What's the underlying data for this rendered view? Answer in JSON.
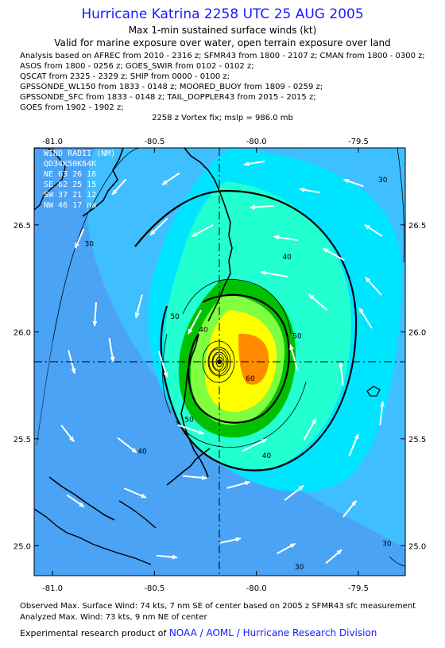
{
  "title": "Hurricane Katrina 2258 UTC 25 AUG 2005",
  "subtitle1": "Max 1-min sustained surface winds (kt)",
  "subtitle2": "Valid for marine exposure over water, open terrain exposure over land",
  "analysis_lines": [
    "Analysis based on  AFREC from 2010 - 2316 z;  SFMR43 from 1800 - 2107 z;  CMAN from 1800 - 0300 z;",
    "ASOS from 1800 - 0256 z;  GOES_SWIR from 0102 - 0102 z;",
    "QSCAT from 2325 - 2329 z;  SHIP from 0000 - 0100 z;",
    "GPSSONDE_WL150 from 1833 - 0148 z;  MOORED_BUOY from 1809 - 0259 z;",
    "GPSSONDE_SFC from 1833 - 0148 z;  TAIL_DOPPLER43 from 2015 - 2015 z;",
    "GOES from 1902 - 1902 z;"
  ],
  "vortex_fix": "2258 z Vortex fix; mslp = 986.0 mb",
  "wind_radii": {
    "header": "WIND RADII (NM)",
    "columns": "QD34K50K64K",
    "rows": [
      "NE 63 26 16",
      "SE 62 25 15",
      "SW 37 21 12",
      "NW 46 17 na"
    ]
  },
  "footer": {
    "line1": "Observed Max. Surface Wind: 74 kts, 7 nm SE of center based on 2005 z SFMR43 sfc measurement",
    "line2": "Analyzed Max. Wind: 73 kts, 9 nm NE of center",
    "line3_prefix": "Experimental research product of",
    "line3_org": "NOAA / AOML / Hurricane Research Division"
  },
  "chart_data": {
    "type": "contour",
    "x_ticks": [
      "-81.0",
      "-80.5",
      "-80.0",
      "-79.5"
    ],
    "y_ticks": [
      "25.0",
      "25.5",
      "26.0",
      "26.5"
    ],
    "xlim": [
      -81.09,
      -79.27
    ],
    "ylim": [
      24.86,
      26.86
    ],
    "center": {
      "lon": -80.1,
      "lat": 25.87
    },
    "contour_labels": [
      {
        "text": "30",
        "lon": -80.82,
        "lat": 26.4
      },
      {
        "text": "30",
        "lon": -79.38,
        "lat": 26.7
      },
      {
        "text": "30",
        "lon": -79.36,
        "lat": 25.0
      },
      {
        "text": "30",
        "lon": -79.79,
        "lat": 24.89
      },
      {
        "text": "40",
        "lon": -79.85,
        "lat": 26.34
      },
      {
        "text": "40",
        "lon": -79.95,
        "lat": 25.41
      },
      {
        "text": "40",
        "lon": -80.56,
        "lat": 25.43
      },
      {
        "text": "50",
        "lon": -80.4,
        "lat": 26.06
      },
      {
        "text": "50",
        "lon": -79.8,
        "lat": 25.97
      },
      {
        "text": "50",
        "lon": -80.33,
        "lat": 25.58
      },
      {
        "text": "40",
        "lon": -80.26,
        "lat": 26.0
      },
      {
        "text": "60",
        "lon": -80.03,
        "lat": 25.77
      }
    ],
    "colors": {
      "lt_blue": "#4aa3f5",
      "sky": "#3fbfff",
      "cyan": "#00e5ff",
      "aqua": "#22ffd0",
      "green": "#00c000",
      "lime": "#80ff40",
      "yellow": "#ffff00",
      "orange": "#ff8a00"
    }
  }
}
